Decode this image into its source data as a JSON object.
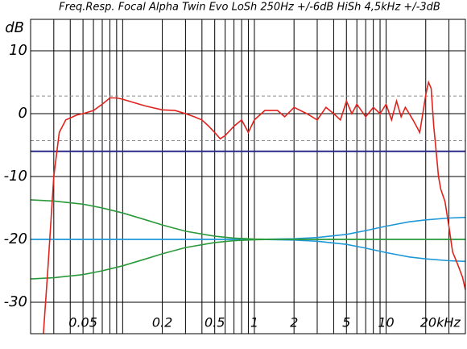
{
  "chart_data": {
    "type": "line",
    "title": "Freq.Resp. Focal Alpha Twin Evo LoSh 250Hz +/-6dB HiSh 4,5kHz +/-3dB",
    "y_label": "dB",
    "xscale": "log",
    "xlim": [
      0.02,
      40
    ],
    "ylim": [
      -35,
      15
    ],
    "xticks": [
      0.05,
      0.2,
      0.5,
      1,
      2,
      5,
      10,
      {
        "value": 20,
        "label": "20kHz"
      }
    ],
    "xgrid": [
      0.02,
      0.03,
      0.04,
      0.05,
      0.06,
      0.07,
      0.08,
      0.09,
      0.1,
      0.2,
      0.3,
      0.4,
      0.5,
      0.6,
      0.7,
      0.8,
      0.9,
      1,
      2,
      3,
      4,
      5,
      6,
      7,
      8,
      9,
      10,
      20,
      30
    ],
    "yticks": [
      10,
      0,
      -10,
      -20,
      -30
    ],
    "ref_lines": [
      {
        "value": 2.8,
        "color": "#8a8a8a",
        "dashed": true
      },
      {
        "value": -4.3,
        "color": "#8a8a8a",
        "dashed": true
      },
      {
        "value": -6,
        "color": "#2a2a8a",
        "dashed": false
      }
    ],
    "series": [
      {
        "color": "#1f98d8",
        "x": [
          0.02,
          0.03,
          0.05,
          0.07,
          0.1,
          0.15,
          0.2,
          0.3,
          0.5,
          0.7,
          1,
          1.5,
          2,
          3,
          5,
          7,
          10,
          15,
          20,
          30,
          40
        ],
        "values": [
          -20,
          -20,
          -20,
          -20,
          -20,
          -20,
          -20,
          -20,
          -20,
          -20,
          -20,
          -19.95,
          -19.9,
          -19.7,
          -19.2,
          -18.6,
          -17.9,
          -17.2,
          -16.9,
          -16.6,
          -16.5
        ]
      },
      {
        "color": "#1f98d8",
        "x": [
          0.02,
          0.03,
          0.05,
          0.07,
          0.1,
          0.15,
          0.2,
          0.3,
          0.5,
          0.7,
          1,
          1.5,
          2,
          3,
          5,
          7,
          10,
          15,
          20,
          30,
          40
        ],
        "values": [
          -20,
          -20,
          -20,
          -20,
          -20,
          -20,
          -20,
          -20,
          -20,
          -20,
          -20,
          -20.05,
          -20.1,
          -20.3,
          -20.8,
          -21.4,
          -22.1,
          -22.8,
          -23.1,
          -23.4,
          -23.5
        ]
      },
      {
        "color": "#2a9a3a",
        "x": [
          0.02,
          0.03,
          0.05,
          0.07,
          0.1,
          0.15,
          0.2,
          0.3,
          0.5,
          0.7,
          1,
          1.5,
          2,
          3,
          5,
          7,
          10,
          15,
          20,
          30,
          40
        ],
        "values": [
          -13.7,
          -13.9,
          -14.4,
          -15,
          -15.8,
          -16.9,
          -17.7,
          -18.7,
          -19.5,
          -19.8,
          -19.95,
          -20,
          -20,
          -20,
          -20,
          -20,
          -20,
          -20,
          -20,
          -20,
          -20
        ]
      },
      {
        "color": "#2a9a3a",
        "x": [
          0.02,
          0.03,
          0.05,
          0.07,
          0.1,
          0.15,
          0.2,
          0.3,
          0.5,
          0.7,
          1,
          1.5,
          2,
          3,
          5,
          7,
          10,
          15,
          20,
          30,
          40
        ],
        "values": [
          -26.3,
          -26.1,
          -25.6,
          -25,
          -24.2,
          -23.1,
          -22.3,
          -21.3,
          -20.5,
          -20.2,
          -20.05,
          -20,
          -20,
          -20,
          -20,
          -20,
          -20,
          -20,
          -20,
          -20,
          -20
        ]
      },
      {
        "color": "#e0231c",
        "x": [
          0.025,
          0.027,
          0.03,
          0.033,
          0.037,
          0.045,
          0.05,
          0.06,
          0.07,
          0.08,
          0.09,
          0.1,
          0.12,
          0.15,
          0.2,
          0.25,
          0.3,
          0.35,
          0.4,
          0.45,
          0.5,
          0.55,
          0.6,
          0.7,
          0.8,
          0.9,
          1,
          1.2,
          1.5,
          1.7,
          2,
          2.5,
          3,
          3.5,
          4,
          4.5,
          5,
          5.5,
          6,
          7,
          8,
          9,
          10,
          11,
          12,
          13,
          14,
          15,
          16,
          17,
          18,
          19,
          20,
          21,
          22,
          23,
          24,
          25,
          26,
          28,
          30,
          32,
          35,
          38,
          40
        ],
        "values": [
          -35,
          -25,
          -10,
          -3,
          -1,
          -0.2,
          0,
          0.5,
          1.5,
          2.5,
          2.5,
          2.3,
          1.8,
          1.2,
          0.6,
          0.5,
          0,
          -0.5,
          -1,
          -2,
          -3,
          -4,
          -3.5,
          -2,
          -1,
          -3,
          -1,
          0.5,
          0.5,
          -0.5,
          1,
          0,
          -1,
          1,
          0,
          -1,
          2,
          0,
          1.5,
          -0.5,
          1,
          0,
          1.5,
          -1,
          2,
          -0.5,
          1,
          0,
          -1,
          -2,
          -3,
          0,
          3,
          5,
          4,
          -2,
          -6,
          -10,
          -12,
          -14,
          -18,
          -22,
          -24,
          -26,
          -28
        ]
      }
    ]
  }
}
